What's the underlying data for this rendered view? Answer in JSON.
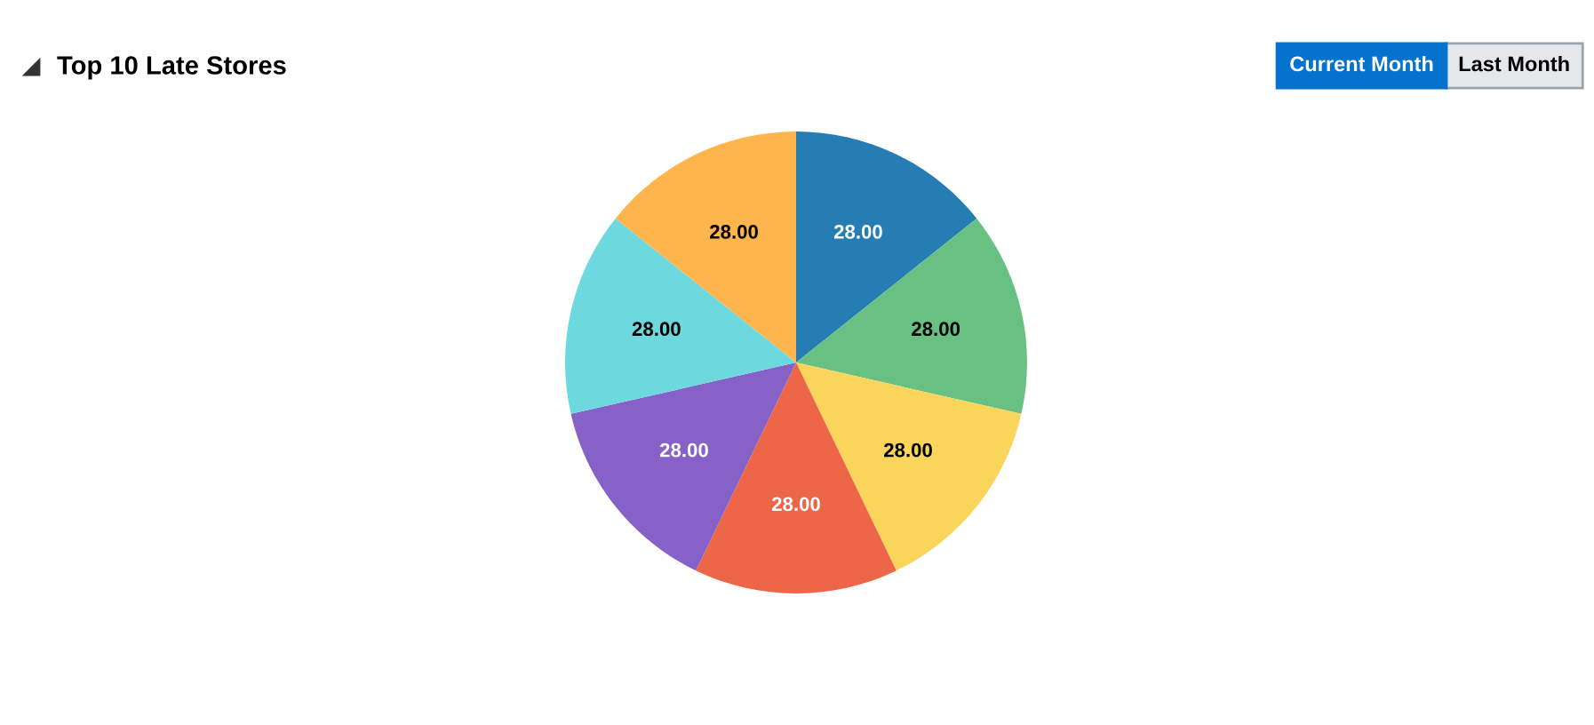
{
  "chart_data": {
    "type": "pie",
    "title": "Top 10 Late Stores",
    "categories": [
      null,
      null,
      null,
      null,
      null,
      null,
      null
    ],
    "values": [
      28,
      28,
      28,
      28,
      28,
      28,
      28
    ],
    "value_labels": [
      "28.00",
      "28.00",
      "28.00",
      "28.00",
      "28.00",
      "28.00",
      "28.00"
    ],
    "colors": [
      "#267db3",
      "#68c182",
      "#fad55c",
      "#ed6647",
      "#8561c8",
      "#6dd9de",
      "#ffb54d"
    ],
    "annotations": [
      "Current Month",
      "Last Month"
    ],
    "legend": false
  }
}
